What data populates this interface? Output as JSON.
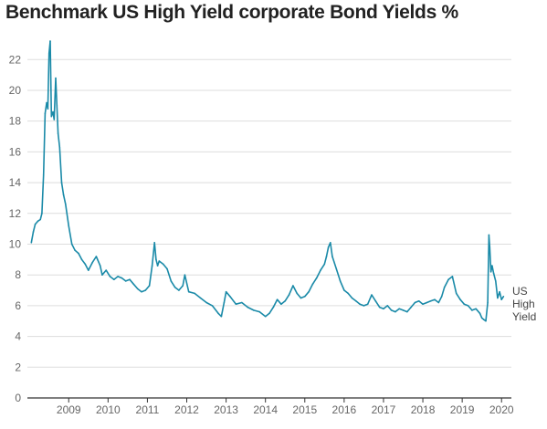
{
  "chart_data": {
    "type": "line",
    "title": "Benchmark US High Yield corporate Bond Yields %",
    "xlabel": "",
    "ylabel": "",
    "xlim": [
      2008.45,
      2020.75
    ],
    "ylim": [
      0,
      23.5
    ],
    "y_ticks": [
      0,
      2,
      4,
      6,
      8,
      10,
      12,
      14,
      16,
      18,
      20,
      22
    ],
    "x_ticks": [
      "2009",
      "2010",
      "2011",
      "2012",
      "2013",
      "2014",
      "2015",
      "2016",
      "2017",
      "2018",
      "2019",
      "2020"
    ],
    "grid": true,
    "legend": "none",
    "colors": {
      "line": "#1a8aa8",
      "grid": "#dddddd",
      "axis": "#333333"
    },
    "series": [
      {
        "name": "US High Yield",
        "x": [
          2008.55,
          2008.6,
          2008.65,
          2008.72,
          2008.78,
          2008.82,
          2008.86,
          2008.9,
          2008.94,
          2008.97,
          2009.0,
          2009.03,
          2009.06,
          2009.1,
          2009.13,
          2009.17,
          2009.2,
          2009.23,
          2009.27,
          2009.32,
          2009.37,
          2009.42,
          2009.5,
          2009.58,
          2009.66,
          2009.75,
          2009.83,
          2009.92,
          2010.0,
          2010.1,
          2010.2,
          2010.3,
          2010.35,
          2010.45,
          2010.55,
          2010.65,
          2010.75,
          2010.85,
          2010.95,
          2011.05,
          2011.15,
          2011.25,
          2011.35,
          2011.45,
          2011.55,
          2011.62,
          2011.68,
          2011.72,
          2011.76,
          2011.8,
          2011.9,
          2012.0,
          2012.1,
          2012.2,
          2012.3,
          2012.4,
          2012.45,
          2012.55,
          2012.7,
          2012.85,
          2013.0,
          2013.15,
          2013.3,
          2013.38,
          2013.45,
          2013.5,
          2013.6,
          2013.75,
          2013.9,
          2014.05,
          2014.2,
          2014.35,
          2014.5,
          2014.6,
          2014.7,
          2014.8,
          2014.9,
          2015.0,
          2015.1,
          2015.2,
          2015.3,
          2015.4,
          2015.5,
          2015.6,
          2015.7,
          2015.8,
          2015.9,
          2016.0,
          2016.05,
          2016.1,
          2016.15,
          2016.2,
          2016.3,
          2016.4,
          2016.5,
          2016.6,
          2016.7,
          2016.8,
          2016.9,
          2017.0,
          2017.1,
          2017.2,
          2017.3,
          2017.4,
          2017.5,
          2017.6,
          2017.7,
          2017.8,
          2017.9,
          2018.0,
          2018.1,
          2018.2,
          2018.3,
          2018.4,
          2018.5,
          2018.6,
          2018.7,
          2018.8,
          2018.9,
          2018.98,
          2019.05,
          2019.15,
          2019.25,
          2019.35,
          2019.45,
          2019.55,
          2019.65,
          2019.75,
          2019.85,
          2019.95,
          2020.0,
          2020.05,
          2020.1,
          2020.15,
          2020.18,
          2020.2,
          2020.23,
          2020.26,
          2020.3,
          2020.35,
          2020.4,
          2020.45,
          2020.5,
          2020.55
        ],
        "y": [
          10.1,
          10.8,
          11.3,
          11.5,
          11.6,
          12.0,
          14.5,
          18.5,
          19.2,
          18.8,
          22.4,
          23.2,
          18.3,
          18.6,
          18.1,
          20.8,
          19.0,
          17.2,
          16.3,
          14.0,
          13.2,
          12.6,
          11.2,
          10.0,
          9.6,
          9.4,
          9.0,
          8.7,
          8.3,
          8.8,
          9.2,
          8.6,
          8.0,
          8.3,
          7.9,
          7.7,
          7.9,
          7.8,
          7.6,
          7.7,
          7.4,
          7.1,
          6.9,
          7.0,
          7.3,
          8.6,
          10.1,
          9.0,
          8.6,
          8.9,
          8.7,
          8.4,
          7.6,
          7.2,
          7.0,
          7.3,
          8.0,
          6.9,
          6.8,
          6.5,
          6.2,
          6.0,
          5.5,
          5.3,
          6.2,
          6.9,
          6.6,
          6.1,
          6.2,
          5.9,
          5.7,
          5.6,
          5.3,
          5.5,
          5.9,
          6.4,
          6.1,
          6.3,
          6.7,
          7.3,
          6.8,
          6.5,
          6.6,
          6.9,
          7.4,
          7.8,
          8.3,
          8.7,
          9.2,
          9.8,
          10.1,
          9.2,
          8.4,
          7.6,
          7.0,
          6.8,
          6.5,
          6.3,
          6.1,
          6.0,
          6.1,
          6.7,
          6.3,
          5.9,
          5.8,
          6.0,
          5.7,
          5.6,
          5.8,
          5.7,
          5.6,
          5.9,
          6.2,
          6.3,
          6.1,
          6.2,
          6.3,
          6.4,
          6.2,
          6.6,
          7.2,
          7.7,
          7.9,
          6.8,
          6.4,
          6.1,
          6.0,
          5.7,
          5.8,
          5.5,
          5.2,
          5.1,
          5.0,
          6.2,
          10.6,
          9.8,
          8.2,
          8.6,
          8.1,
          7.6,
          6.5,
          6.9,
          6.4,
          6.6
        ]
      }
    ]
  }
}
